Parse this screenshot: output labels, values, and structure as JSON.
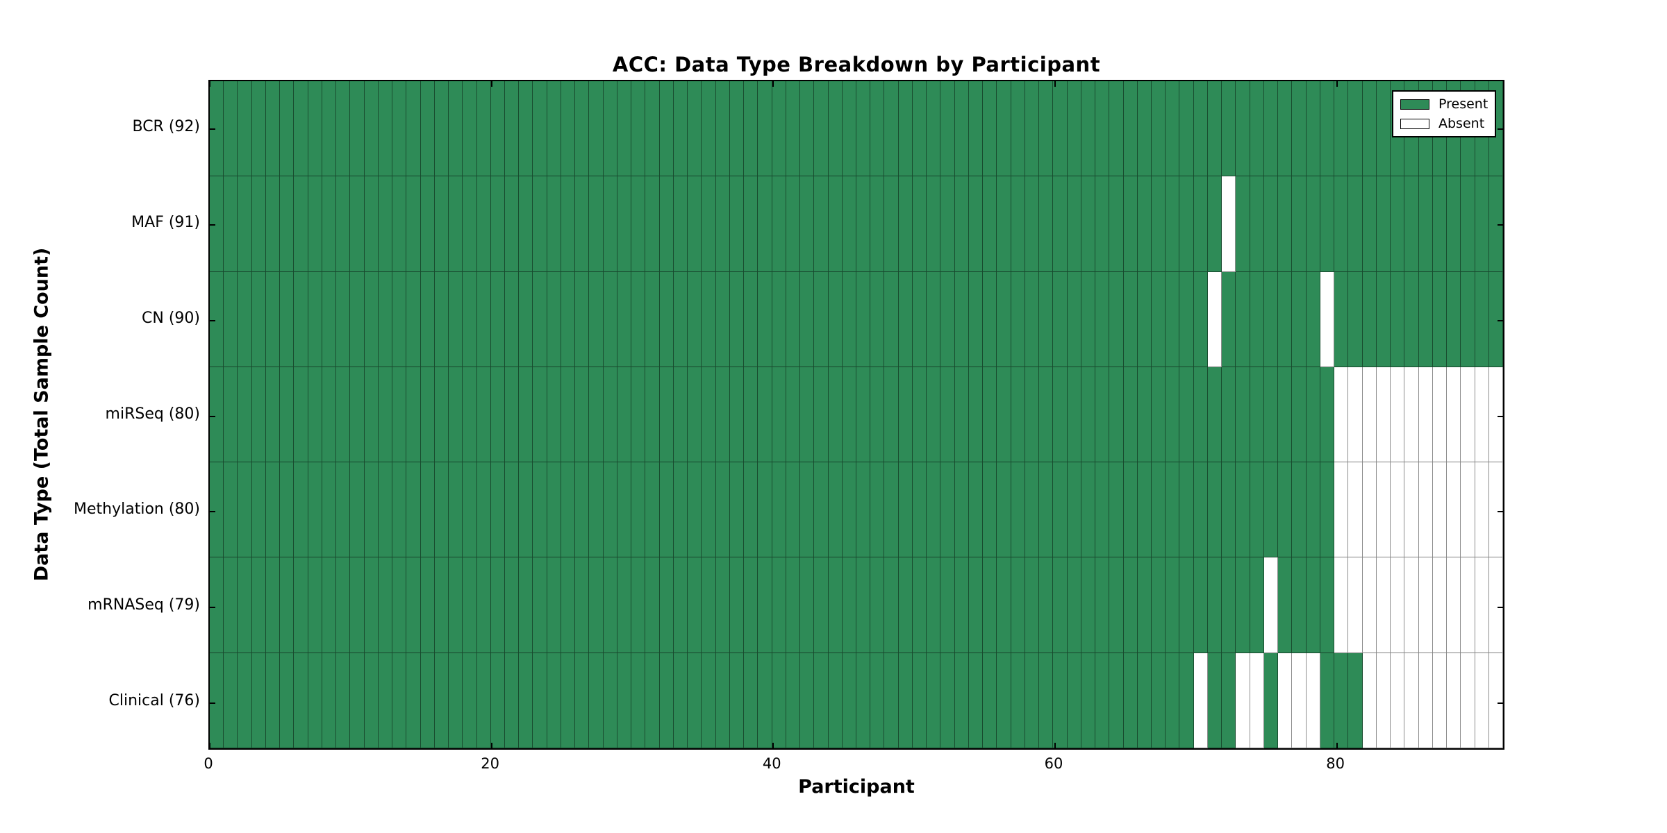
{
  "colors": {
    "present": "#2E8B57",
    "absent": "#FFFFFF",
    "cell_edge": "rgba(0,0,0,0.45)",
    "frame": "#000000"
  },
  "chart_data": {
    "type": "heatmap",
    "title": "ACC: Data Type Breakdown by Participant",
    "xlabel": "Participant",
    "ylabel": "Data Type (Total Sample Count)",
    "x_ticks": [
      0,
      20,
      40,
      60,
      80
    ],
    "x_range": [
      0,
      92
    ],
    "n_participants": 92,
    "grid": "cell-edges-on",
    "legend_position": "upper-right-inside",
    "legend": [
      {
        "label": "Present",
        "color": "#2E8B57"
      },
      {
        "label": "Absent",
        "color": "#FFFFFF"
      }
    ],
    "rows": [
      {
        "label": "BCR (92)",
        "data_type": "BCR",
        "count": 92,
        "absent_participants": []
      },
      {
        "label": "MAF (91)",
        "data_type": "MAF",
        "count": 91,
        "absent_participants": [
          72
        ]
      },
      {
        "label": "CN (90)",
        "data_type": "CN",
        "count": 90,
        "absent_participants": [
          71,
          79
        ]
      },
      {
        "label": "miRSeq (80)",
        "data_type": "miRSeq",
        "count": 80,
        "absent_participants": [
          80,
          81,
          82,
          83,
          84,
          85,
          86,
          87,
          88,
          89,
          90,
          91
        ]
      },
      {
        "label": "Methylation (80)",
        "data_type": "Methylation",
        "count": 80,
        "absent_participants": [
          80,
          81,
          82,
          83,
          84,
          85,
          86,
          87,
          88,
          89,
          90,
          91
        ]
      },
      {
        "label": "mRNASeq (79)",
        "data_type": "mRNASeq",
        "count": 79,
        "absent_participants": [
          75,
          80,
          81,
          82,
          83,
          84,
          85,
          86,
          87,
          88,
          89,
          90,
          91
        ]
      },
      {
        "label": "Clinical (76)",
        "data_type": "Clinical",
        "count": 76,
        "absent_participants": [
          70,
          73,
          74,
          76,
          77,
          78,
          82,
          83,
          84,
          85,
          86,
          87,
          88,
          89,
          90,
          91
        ]
      }
    ]
  }
}
